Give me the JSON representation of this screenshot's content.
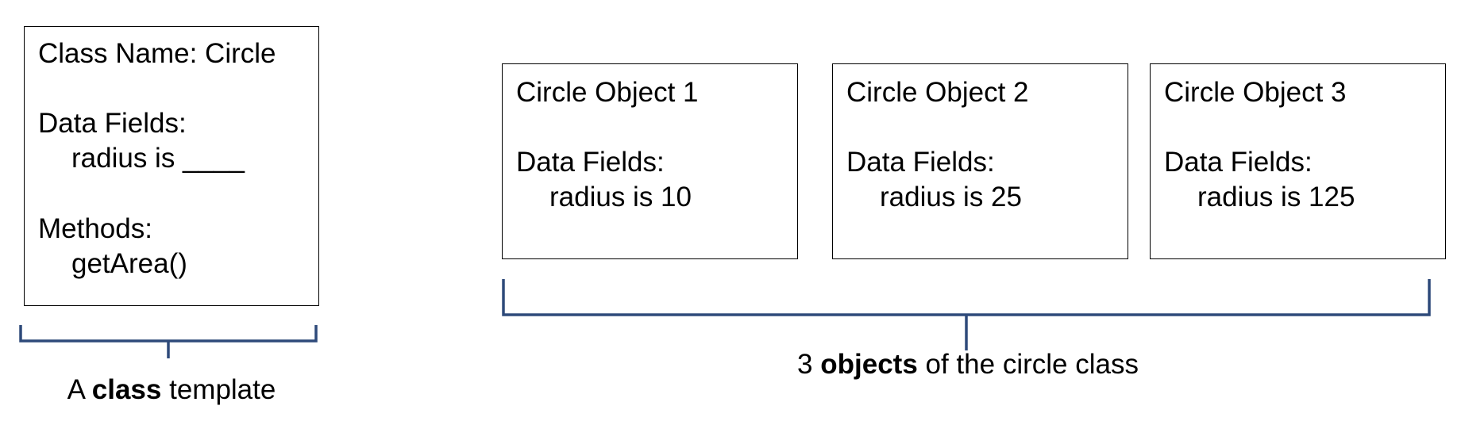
{
  "class_box": {
    "title": "Class Name: Circle",
    "fields_heading": "Data Fields:",
    "field": "radius is ____",
    "methods_heading": "Methods:",
    "method": "getArea()"
  },
  "objects": [
    {
      "title": "Circle Object 1",
      "fields_heading": "Data Fields:",
      "field": "radius is 10"
    },
    {
      "title": "Circle Object 2",
      "fields_heading": "Data Fields:",
      "field": "radius is 25"
    },
    {
      "title": "Circle Object 3",
      "fields_heading": "Data Fields:",
      "field": "radius is 125"
    }
  ],
  "class_caption": {
    "before": "A ",
    "bold": "class",
    "after": " template"
  },
  "objects_caption": {
    "before": "3 ",
    "bold": "objects",
    "after": " of the circle class"
  },
  "colors": {
    "bracket": "#2e4a7a",
    "border": "#000000"
  }
}
